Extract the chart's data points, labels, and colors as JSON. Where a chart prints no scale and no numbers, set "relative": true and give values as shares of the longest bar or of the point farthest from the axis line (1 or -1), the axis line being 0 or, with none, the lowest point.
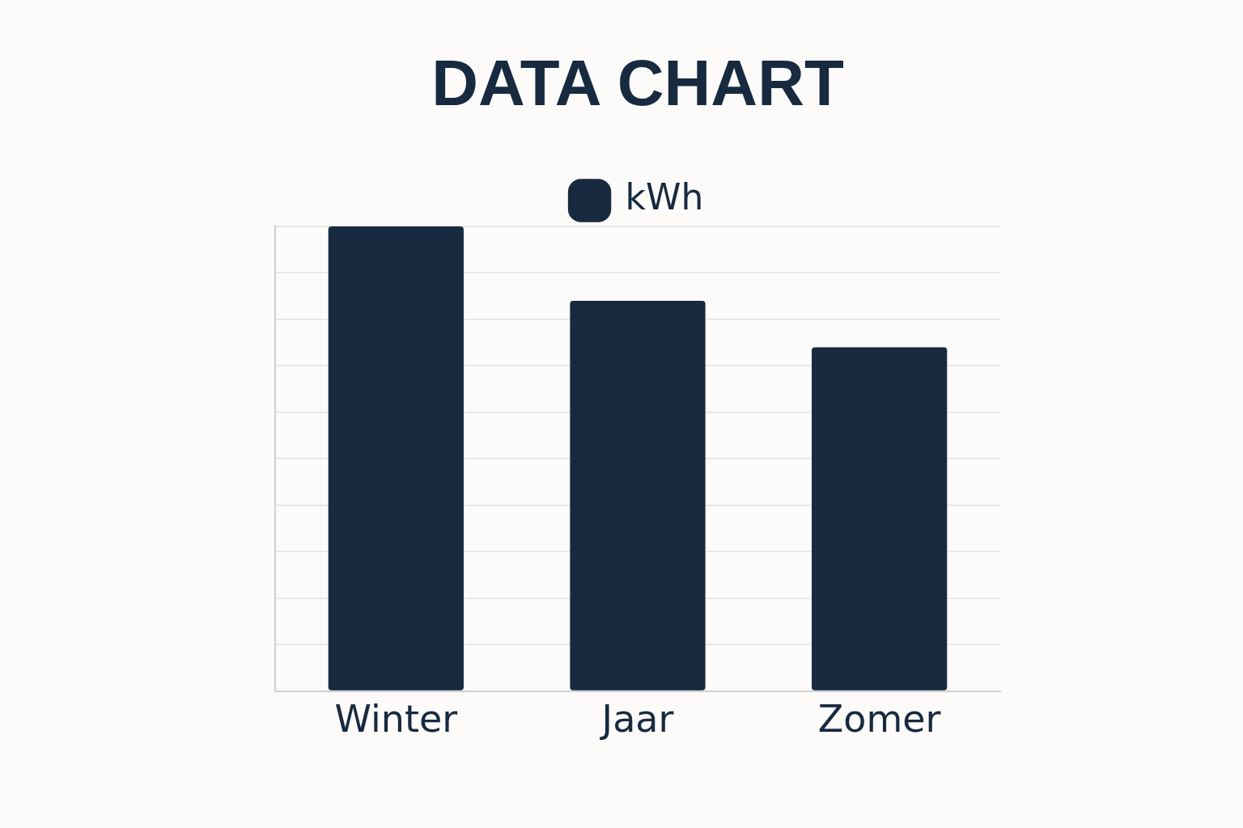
{
  "chart_data": {
    "type": "bar",
    "title": "DATA CHART",
    "categories": [
      "Winter",
      "Jaar",
      "Zomer"
    ],
    "series": [
      {
        "name": "kWh",
        "color": "#172a40",
        "values": [
          1,
          0.84,
          0.74
        ]
      }
    ],
    "relative": true,
    "grid": "y",
    "legend": "top"
  }
}
